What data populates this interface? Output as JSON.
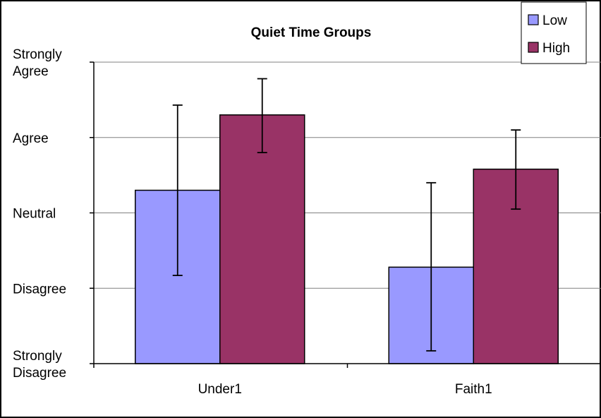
{
  "chart_data": {
    "type": "bar",
    "title": "Quiet Time Groups",
    "xlabel": "",
    "ylabel": "",
    "categories": [
      "Under1",
      "Faith1"
    ],
    "y_tick_labels": [
      {
        "value": 1,
        "lines": [
          "Strongly",
          "Disagree"
        ]
      },
      {
        "value": 2,
        "lines": [
          "Disagree"
        ]
      },
      {
        "value": 3,
        "lines": [
          "Neutral"
        ]
      },
      {
        "value": 4,
        "lines": [
          "Agree"
        ]
      },
      {
        "value": 5,
        "lines": [
          "Strongly",
          "Agree"
        ]
      }
    ],
    "ylim": [
      1,
      5
    ],
    "grid": true,
    "legend_position": "top-right",
    "series": [
      {
        "name": "Low",
        "color": "#9999ff",
        "values": [
          3.3,
          2.28
        ],
        "error_low": [
          2.17,
          1.17
        ],
        "error_high": [
          4.43,
          3.4
        ]
      },
      {
        "name": "High",
        "color": "#993366",
        "values": [
          4.3,
          3.58
        ],
        "error_low": [
          3.8,
          3.05
        ],
        "error_high": [
          4.78,
          4.1
        ]
      }
    ]
  }
}
